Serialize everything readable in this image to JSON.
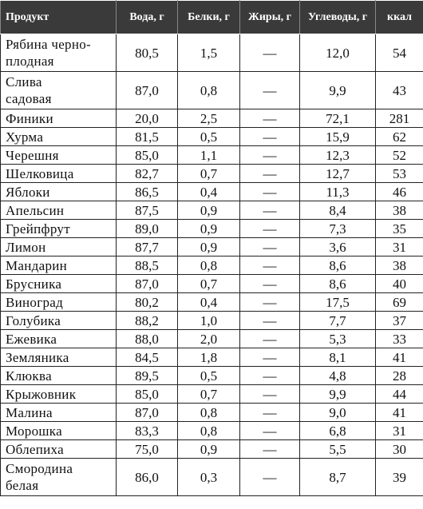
{
  "table": {
    "header": [
      "Продукт",
      "Вода, г",
      "Белки, г",
      "Жиры, г",
      "Углеводы, г",
      "ккал"
    ],
    "rows": [
      [
        [
          "Рябина черно-",
          "плодная"
        ],
        "80,5",
        "1,5",
        "—",
        "12,0",
        "54"
      ],
      [
        [
          "Слива",
          "садовая"
        ],
        "87,0",
        "0,8",
        "—",
        "9,9",
        "43"
      ],
      [
        [
          "Финики"
        ],
        "20,0",
        "2,5",
        "—",
        "72,1",
        "281"
      ],
      [
        [
          "Хурма"
        ],
        "81,5",
        "0,5",
        "—",
        "15,9",
        "62"
      ],
      [
        [
          "Черешня"
        ],
        "85,0",
        "1,1",
        "—",
        "12,3",
        "52"
      ],
      [
        [
          "Шелковица"
        ],
        "82,7",
        "0,7",
        "—",
        "12,7",
        "53"
      ],
      [
        [
          "Яблоки"
        ],
        "86,5",
        "0,4",
        "—",
        "11,3",
        "46"
      ],
      [
        [
          "Апельсин"
        ],
        "87,5",
        "0,9",
        "—",
        "8,4",
        "38"
      ],
      [
        [
          "Грейпфрут"
        ],
        "89,0",
        "0,9",
        "—",
        "7,3",
        "35"
      ],
      [
        [
          "Лимон"
        ],
        "87,7",
        "0,9",
        "—",
        "3,6",
        "31"
      ],
      [
        [
          "Мандарин"
        ],
        "88,5",
        "0,8",
        "—",
        "8,6",
        "38"
      ],
      [
        [
          "Брусника"
        ],
        "87,0",
        "0,7",
        "—",
        "8,6",
        "40"
      ],
      [
        [
          "Виноград"
        ],
        "80,2",
        "0,4",
        "—",
        "17,5",
        "69"
      ],
      [
        [
          "Голубика"
        ],
        "88,2",
        "1,0",
        "—",
        "7,7",
        "37"
      ],
      [
        [
          "Ежевика"
        ],
        "88,0",
        "2,0",
        "—",
        "5,3",
        "33"
      ],
      [
        [
          "Земляника"
        ],
        "84,5",
        "1,8",
        "—",
        "8,1",
        "41"
      ],
      [
        [
          "Клюква"
        ],
        "89,5",
        "0,5",
        "—",
        "4,8",
        "28"
      ],
      [
        [
          "Крыжовник"
        ],
        "85,0",
        "0,7",
        "—",
        "9,9",
        "44"
      ],
      [
        [
          "Малина"
        ],
        "87,0",
        "0,8",
        "—",
        "9,0",
        "41"
      ],
      [
        [
          "Морошка"
        ],
        "83,3",
        "0,8",
        "—",
        "6,8",
        "31"
      ],
      [
        [
          "Облепиха"
        ],
        "75,0",
        "0,9",
        "—",
        "5,5",
        "30"
      ],
      [
        [
          "Смородина",
          "белая"
        ],
        "86,0",
        "0,3",
        "—",
        "8,7",
        "39"
      ]
    ]
  }
}
